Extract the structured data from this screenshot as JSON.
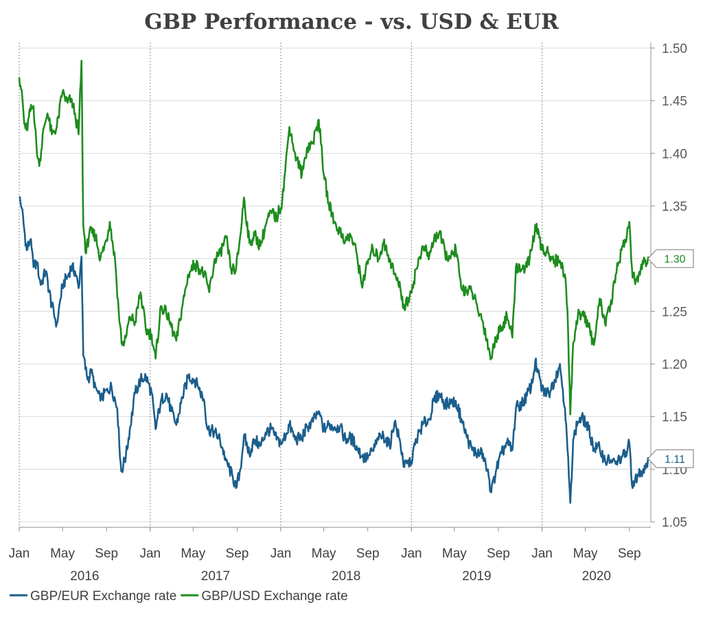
{
  "chart_data": {
    "type": "line",
    "title": "GBP Performance - vs. USD & EUR",
    "xlabel": "",
    "ylabel": "",
    "x_range": [
      "2016-01-01",
      "2020-10-31"
    ],
    "ylim": [
      1.05,
      1.5
    ],
    "y_ticks": [
      "1.05",
      "1.10",
      "1.15",
      "1.20",
      "1.25",
      "1.30",
      "1.35",
      "1.40",
      "1.45",
      "1.50"
    ],
    "y_axis_side": "right",
    "grid": "horizontal",
    "x_tick_labels": [
      "Jan",
      "May",
      "Sep",
      "Jan",
      "May",
      "Sep",
      "Jan",
      "May",
      "Sep",
      "Jan",
      "May",
      "Sep",
      "Jan",
      "May",
      "Sep"
    ],
    "year_labels": [
      "2016",
      "2017",
      "2018",
      "2019",
      "2020"
    ],
    "year_separators": [
      "2016-01-01",
      "2017-01-01",
      "2018-01-01",
      "2019-01-01",
      "2020-01-01"
    ],
    "legend_position": "bottom-left",
    "series": [
      {
        "name": "GBP/EUR Exchange rate",
        "color": "#1b5e8c",
        "end_label": "1.11",
        "points": [
          [
            "2016-01-01",
            1.358
          ],
          [
            "2016-01-08",
            1.348
          ],
          [
            "2016-01-15",
            1.328
          ],
          [
            "2016-01-22",
            1.308
          ],
          [
            "2016-02-01",
            1.318
          ],
          [
            "2016-02-10",
            1.292
          ],
          [
            "2016-02-20",
            1.295
          ],
          [
            "2016-03-01",
            1.275
          ],
          [
            "2016-03-15",
            1.288
          ],
          [
            "2016-04-01",
            1.255
          ],
          [
            "2016-04-15",
            1.238
          ],
          [
            "2016-05-01",
            1.275
          ],
          [
            "2016-05-15",
            1.283
          ],
          [
            "2016-05-25",
            1.292
          ],
          [
            "2016-06-05",
            1.288
          ],
          [
            "2016-06-15",
            1.272
          ],
          [
            "2016-06-23",
            1.302
          ],
          [
            "2016-06-28",
            1.208
          ],
          [
            "2016-07-10",
            1.185
          ],
          [
            "2016-07-20",
            1.192
          ],
          [
            "2016-08-01",
            1.178
          ],
          [
            "2016-08-15",
            1.165
          ],
          [
            "2016-09-01",
            1.175
          ],
          [
            "2016-09-15",
            1.178
          ],
          [
            "2016-10-01",
            1.158
          ],
          [
            "2016-10-07",
            1.122
          ],
          [
            "2016-10-12",
            1.098
          ],
          [
            "2016-10-25",
            1.112
          ],
          [
            "2016-11-05",
            1.138
          ],
          [
            "2016-11-20",
            1.172
          ],
          [
            "2016-12-05",
            1.185
          ],
          [
            "2016-12-20",
            1.188
          ],
          [
            "2017-01-05",
            1.172
          ],
          [
            "2017-01-16",
            1.138
          ],
          [
            "2017-01-31",
            1.165
          ],
          [
            "2017-02-15",
            1.172
          ],
          [
            "2017-03-01",
            1.155
          ],
          [
            "2017-03-15",
            1.142
          ],
          [
            "2017-04-01",
            1.168
          ],
          [
            "2017-04-18",
            1.188
          ],
          [
            "2017-05-05",
            1.185
          ],
          [
            "2017-05-15",
            1.178
          ],
          [
            "2017-06-01",
            1.165
          ],
          [
            "2017-06-10",
            1.138
          ],
          [
            "2017-07-01",
            1.135
          ],
          [
            "2017-07-15",
            1.128
          ],
          [
            "2017-08-01",
            1.108
          ],
          [
            "2017-08-20",
            1.092
          ],
          [
            "2017-08-29",
            1.082
          ],
          [
            "2017-09-10",
            1.1
          ],
          [
            "2017-09-20",
            1.132
          ],
          [
            "2017-10-05",
            1.115
          ],
          [
            "2017-10-20",
            1.128
          ],
          [
            "2017-11-05",
            1.122
          ],
          [
            "2017-11-20",
            1.135
          ],
          [
            "2017-12-05",
            1.138
          ],
          [
            "2017-12-20",
            1.128
          ],
          [
            "2018-01-05",
            1.125
          ],
          [
            "2018-01-25",
            1.142
          ],
          [
            "2018-02-10",
            1.128
          ],
          [
            "2018-03-01",
            1.13
          ],
          [
            "2018-03-15",
            1.14
          ],
          [
            "2018-04-01",
            1.145
          ],
          [
            "2018-04-17",
            1.155
          ],
          [
            "2018-05-01",
            1.138
          ],
          [
            "2018-05-15",
            1.142
          ],
          [
            "2018-06-01",
            1.14
          ],
          [
            "2018-06-15",
            1.14
          ],
          [
            "2018-07-01",
            1.128
          ],
          [
            "2018-07-15",
            1.13
          ],
          [
            "2018-08-01",
            1.122
          ],
          [
            "2018-08-15",
            1.112
          ],
          [
            "2018-09-01",
            1.11
          ],
          [
            "2018-09-15",
            1.118
          ],
          [
            "2018-10-01",
            1.128
          ],
          [
            "2018-10-15",
            1.132
          ],
          [
            "2018-11-01",
            1.122
          ],
          [
            "2018-11-15",
            1.145
          ],
          [
            "2018-12-01",
            1.125
          ],
          [
            "2018-12-12",
            1.102
          ],
          [
            "2018-12-31",
            1.108
          ],
          [
            "2019-01-15",
            1.128
          ],
          [
            "2019-02-01",
            1.142
          ],
          [
            "2019-02-20",
            1.148
          ],
          [
            "2019-03-05",
            1.165
          ],
          [
            "2019-03-20",
            1.172
          ],
          [
            "2019-04-05",
            1.162
          ],
          [
            "2019-04-20",
            1.162
          ],
          [
            "2019-05-05",
            1.165
          ],
          [
            "2019-05-20",
            1.148
          ],
          [
            "2019-06-05",
            1.13
          ],
          [
            "2019-06-20",
            1.118
          ],
          [
            "2019-07-05",
            1.115
          ],
          [
            "2019-07-20",
            1.115
          ],
          [
            "2019-08-05",
            1.092
          ],
          [
            "2019-08-12",
            1.078
          ],
          [
            "2019-08-25",
            1.098
          ],
          [
            "2019-09-10",
            1.115
          ],
          [
            "2019-09-25",
            1.125
          ],
          [
            "2019-10-10",
            1.118
          ],
          [
            "2019-10-20",
            1.158
          ],
          [
            "2019-11-05",
            1.162
          ],
          [
            "2019-11-20",
            1.17
          ],
          [
            "2019-12-05",
            1.182
          ],
          [
            "2019-12-13",
            1.202
          ],
          [
            "2020-01-01",
            1.175
          ],
          [
            "2020-01-20",
            1.172
          ],
          [
            "2020-02-05",
            1.185
          ],
          [
            "2020-02-20",
            1.2
          ],
          [
            "2020-03-05",
            1.158
          ],
          [
            "2020-03-12",
            1.12
          ],
          [
            "2020-03-20",
            1.068
          ],
          [
            "2020-03-28",
            1.128
          ],
          [
            "2020-04-10",
            1.145
          ],
          [
            "2020-04-25",
            1.148
          ],
          [
            "2020-05-10",
            1.138
          ],
          [
            "2020-05-25",
            1.12
          ],
          [
            "2020-06-10",
            1.12
          ],
          [
            "2020-06-25",
            1.108
          ],
          [
            "2020-07-10",
            1.108
          ],
          [
            "2020-07-25",
            1.105
          ],
          [
            "2020-08-10",
            1.112
          ],
          [
            "2020-08-25",
            1.115
          ],
          [
            "2020-09-01",
            1.125
          ],
          [
            "2020-09-10",
            1.082
          ],
          [
            "2020-09-25",
            1.095
          ],
          [
            "2020-10-10",
            1.1
          ],
          [
            "2020-10-25",
            1.11
          ]
        ]
      },
      {
        "name": "GBP/USD Exchange rate",
        "color": "#1e8c1e",
        "end_label": "1.30",
        "points": [
          [
            "2016-01-01",
            1.472
          ],
          [
            "2016-01-08",
            1.46
          ],
          [
            "2016-01-15",
            1.428
          ],
          [
            "2016-01-22",
            1.422
          ],
          [
            "2016-02-01",
            1.44
          ],
          [
            "2016-02-10",
            1.445
          ],
          [
            "2016-02-20",
            1.398
          ],
          [
            "2016-02-26",
            1.388
          ],
          [
            "2016-03-10",
            1.425
          ],
          [
            "2016-03-20",
            1.438
          ],
          [
            "2016-04-01",
            1.418
          ],
          [
            "2016-04-15",
            1.425
          ],
          [
            "2016-05-01",
            1.458
          ],
          [
            "2016-05-15",
            1.448
          ],
          [
            "2016-05-25",
            1.452
          ],
          [
            "2016-06-05",
            1.438
          ],
          [
            "2016-06-15",
            1.418
          ],
          [
            "2016-06-23",
            1.488
          ],
          [
            "2016-06-28",
            1.332
          ],
          [
            "2016-07-06",
            1.305
          ],
          [
            "2016-07-15",
            1.325
          ],
          [
            "2016-08-01",
            1.322
          ],
          [
            "2016-08-15",
            1.3
          ],
          [
            "2016-09-01",
            1.318
          ],
          [
            "2016-09-10",
            1.335
          ],
          [
            "2016-09-25",
            1.298
          ],
          [
            "2016-10-07",
            1.24
          ],
          [
            "2016-10-15",
            1.218
          ],
          [
            "2016-10-25",
            1.225
          ],
          [
            "2016-11-05",
            1.245
          ],
          [
            "2016-11-20",
            1.24
          ],
          [
            "2016-12-05",
            1.268
          ],
          [
            "2016-12-20",
            1.232
          ],
          [
            "2017-01-05",
            1.228
          ],
          [
            "2017-01-16",
            1.205
          ],
          [
            "2017-01-31",
            1.255
          ],
          [
            "2017-02-15",
            1.248
          ],
          [
            "2017-03-01",
            1.235
          ],
          [
            "2017-03-15",
            1.222
          ],
          [
            "2017-04-01",
            1.255
          ],
          [
            "2017-04-18",
            1.285
          ],
          [
            "2017-05-05",
            1.295
          ],
          [
            "2017-05-15",
            1.292
          ],
          [
            "2017-06-01",
            1.285
          ],
          [
            "2017-06-15",
            1.268
          ],
          [
            "2017-07-01",
            1.3
          ],
          [
            "2017-07-15",
            1.305
          ],
          [
            "2017-08-01",
            1.32
          ],
          [
            "2017-08-15",
            1.29
          ],
          [
            "2017-08-29",
            1.29
          ],
          [
            "2017-09-10",
            1.322
          ],
          [
            "2017-09-20",
            1.358
          ],
          [
            "2017-10-05",
            1.315
          ],
          [
            "2017-10-20",
            1.322
          ],
          [
            "2017-11-05",
            1.312
          ],
          [
            "2017-11-20",
            1.332
          ],
          [
            "2017-12-05",
            1.345
          ],
          [
            "2017-12-20",
            1.338
          ],
          [
            "2018-01-05",
            1.355
          ],
          [
            "2018-01-25",
            1.425
          ],
          [
            "2018-02-10",
            1.4
          ],
          [
            "2018-03-01",
            1.38
          ],
          [
            "2018-03-15",
            1.405
          ],
          [
            "2018-04-01",
            1.41
          ],
          [
            "2018-04-17",
            1.432
          ],
          [
            "2018-05-01",
            1.38
          ],
          [
            "2018-05-15",
            1.352
          ],
          [
            "2018-06-01",
            1.335
          ],
          [
            "2018-06-15",
            1.325
          ],
          [
            "2018-07-01",
            1.318
          ],
          [
            "2018-07-15",
            1.322
          ],
          [
            "2018-08-01",
            1.305
          ],
          [
            "2018-08-15",
            1.275
          ],
          [
            "2018-09-01",
            1.295
          ],
          [
            "2018-09-15",
            1.31
          ],
          [
            "2018-10-01",
            1.3
          ],
          [
            "2018-10-15",
            1.315
          ],
          [
            "2018-11-01",
            1.3
          ],
          [
            "2018-11-15",
            1.285
          ],
          [
            "2018-12-01",
            1.272
          ],
          [
            "2018-12-12",
            1.252
          ],
          [
            "2018-12-31",
            1.268
          ],
          [
            "2019-01-15",
            1.29
          ],
          [
            "2019-02-01",
            1.312
          ],
          [
            "2019-02-20",
            1.302
          ],
          [
            "2019-03-05",
            1.318
          ],
          [
            "2019-03-20",
            1.325
          ],
          [
            "2019-04-05",
            1.305
          ],
          [
            "2019-04-20",
            1.3
          ],
          [
            "2019-05-05",
            1.31
          ],
          [
            "2019-05-20",
            1.272
          ],
          [
            "2019-06-05",
            1.27
          ],
          [
            "2019-06-20",
            1.268
          ],
          [
            "2019-07-05",
            1.252
          ],
          [
            "2019-07-20",
            1.24
          ],
          [
            "2019-08-05",
            1.215
          ],
          [
            "2019-08-12",
            1.205
          ],
          [
            "2019-08-25",
            1.225
          ],
          [
            "2019-09-10",
            1.235
          ],
          [
            "2019-09-25",
            1.245
          ],
          [
            "2019-10-10",
            1.225
          ],
          [
            "2019-10-20",
            1.292
          ],
          [
            "2019-11-05",
            1.29
          ],
          [
            "2019-11-20",
            1.292
          ],
          [
            "2019-12-05",
            1.312
          ],
          [
            "2019-12-13",
            1.332
          ],
          [
            "2020-01-01",
            1.308
          ],
          [
            "2020-01-20",
            1.305
          ],
          [
            "2020-02-05",
            1.298
          ],
          [
            "2020-02-20",
            1.298
          ],
          [
            "2020-03-05",
            1.285
          ],
          [
            "2020-03-12",
            1.252
          ],
          [
            "2020-03-20",
            1.152
          ],
          [
            "2020-03-28",
            1.22
          ],
          [
            "2020-04-10",
            1.245
          ],
          [
            "2020-04-25",
            1.25
          ],
          [
            "2020-05-10",
            1.235
          ],
          [
            "2020-05-25",
            1.218
          ],
          [
            "2020-06-10",
            1.262
          ],
          [
            "2020-06-25",
            1.238
          ],
          [
            "2020-07-10",
            1.255
          ],
          [
            "2020-07-25",
            1.285
          ],
          [
            "2020-08-10",
            1.308
          ],
          [
            "2020-08-25",
            1.322
          ],
          [
            "2020-09-01",
            1.335
          ],
          [
            "2020-09-10",
            1.282
          ],
          [
            "2020-09-25",
            1.278
          ],
          [
            "2020-10-10",
            1.295
          ],
          [
            "2020-10-25",
            1.302
          ]
        ]
      }
    ]
  }
}
